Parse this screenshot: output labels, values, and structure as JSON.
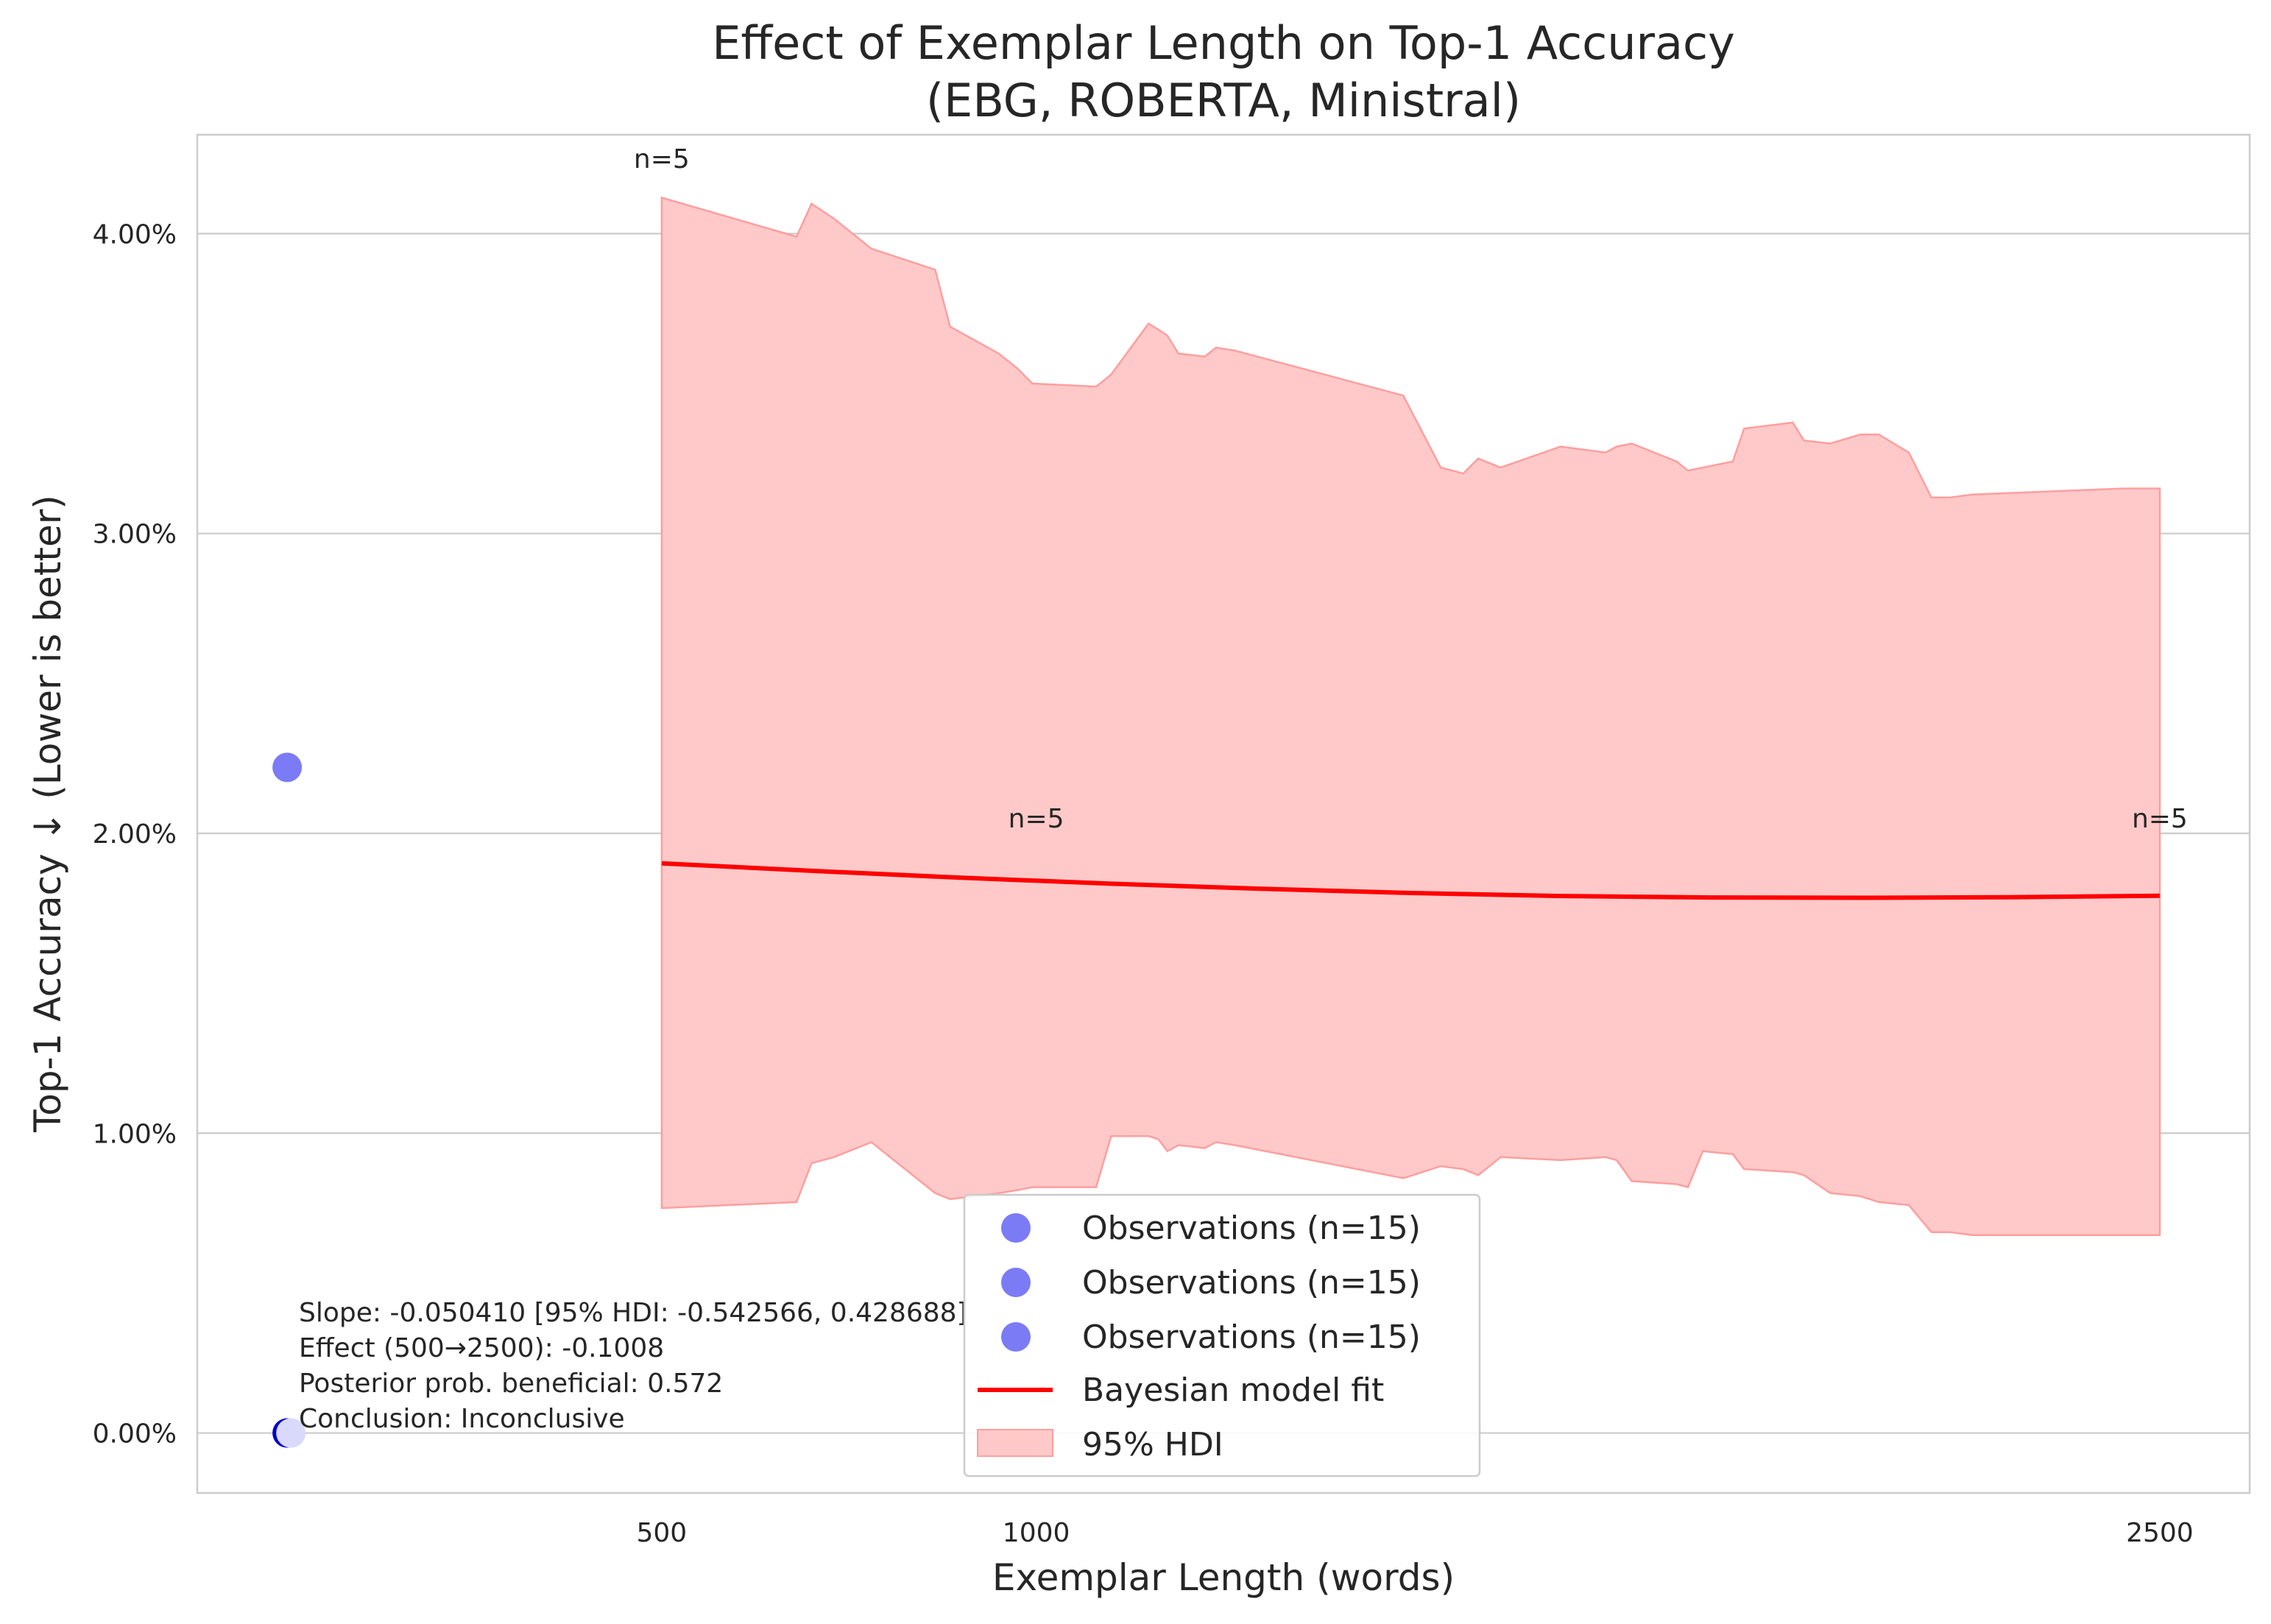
{
  "chart_data": {
    "type": "scatter",
    "title": [
      "Effect of Exemplar Length on Top-1 Accuracy",
      "(EBG, ROBERTA, Ministral)"
    ],
    "xlabel": "Exemplar Length (words)",
    "ylabel": "Top-1 Accuracy ↓ (Lower is better)",
    "xlim": [
      -120,
      2620
    ],
    "ylim": [
      -0.2,
      4.33
    ],
    "x_ticks": [
      {
        "value": 500,
        "label": "500"
      },
      {
        "value": 1000,
        "label": "1000"
      },
      {
        "value": 2500,
        "label": "2500"
      }
    ],
    "y_ticks": [
      {
        "value": 0,
        "label": "0.00%"
      },
      {
        "value": 1,
        "label": "1.00%"
      },
      {
        "value": 2,
        "label": "2.00%"
      },
      {
        "value": 3,
        "label": "3.00%"
      },
      {
        "value": 4,
        "label": "4.00%"
      }
    ],
    "grid": "horizontal",
    "colors": {
      "observation": "#7B7BF5",
      "observation_dark": "#0000CC",
      "observation_light": "#D9D9FB",
      "fit": "#FF0000",
      "hdi_fill": "#FFC9C9",
      "hdi_edge": "#FF9E9E",
      "grid": "#CCCCCC",
      "frame": "#CCCCCC"
    },
    "observations": [
      {
        "x": 0,
        "y": 2.22,
        "shade": "observation"
      },
      {
        "x": 0,
        "y": 0.0,
        "shade": "observation_dark"
      },
      {
        "x": 5,
        "y": 0.0,
        "shade": "observation_light"
      }
    ],
    "fit": {
      "name": "Bayesian model fit",
      "x": [
        500,
        700,
        900,
        1100,
        1300,
        1500,
        1700,
        1900,
        2100,
        2300,
        2500
      ],
      "y": [
        1.9,
        1.875,
        1.852,
        1.832,
        1.815,
        1.801,
        1.791,
        1.786,
        1.785,
        1.787,
        1.792
      ]
    },
    "hdi": {
      "name": "95% HDI",
      "x": [
        500,
        680,
        700,
        730,
        780,
        865,
        885,
        950,
        975,
        995,
        1080,
        1100,
        1150,
        1163,
        1175,
        1190,
        1225,
        1240,
        1265,
        1490,
        1540,
        1570,
        1590,
        1620,
        1700,
        1760,
        1775,
        1795,
        1855,
        1870,
        1890,
        1930,
        1945,
        2010,
        2025,
        2060,
        2100,
        2125,
        2165,
        2195,
        2220,
        2250,
        2250,
        2450,
        2460,
        2480,
        2500
      ],
      "upper": [
        4.12,
        3.99,
        4.1,
        4.05,
        3.95,
        3.88,
        3.69,
        3.6,
        3.55,
        3.5,
        3.49,
        3.53,
        3.7,
        3.68,
        3.66,
        3.6,
        3.59,
        3.62,
        3.61,
        3.46,
        3.22,
        3.2,
        3.25,
        3.22,
        3.29,
        3.27,
        3.29,
        3.3,
        3.24,
        3.21,
        3.22,
        3.24,
        3.35,
        3.37,
        3.31,
        3.3,
        3.33,
        3.33,
        3.27,
        3.12,
        3.12,
        3.13,
        3.13,
        3.15,
        3.15,
        3.15,
        3.15
      ],
      "lower": [
        0.75,
        0.77,
        0.9,
        0.92,
        0.97,
        0.8,
        0.78,
        0.8,
        0.81,
        0.82,
        0.82,
        0.99,
        0.99,
        0.98,
        0.94,
        0.96,
        0.95,
        0.97,
        0.96,
        0.85,
        0.89,
        0.88,
        0.86,
        0.92,
        0.91,
        0.92,
        0.91,
        0.84,
        0.83,
        0.82,
        0.94,
        0.93,
        0.88,
        0.87,
        0.86,
        0.8,
        0.79,
        0.77,
        0.76,
        0.67,
        0.67,
        0.66,
        0.66,
        0.66,
        0.66,
        0.66,
        0.66
      ]
    },
    "annotations": [
      {
        "x": 500,
        "y": 4.22,
        "text": "n=5"
      },
      {
        "x": 1000,
        "y": 2.02,
        "text": "n=5"
      },
      {
        "x": 2500,
        "y": 2.02,
        "text": "n=5"
      }
    ],
    "stats_text": [
      "Slope: -0.050410 [95% HDI: -0.542566, 0.428688]",
      "Effect (500→2500): -0.1008",
      "Posterior prob. beneficial: 0.572",
      "Conclusion: Inconclusive"
    ],
    "legend": {
      "position": "lower-center",
      "entries": [
        {
          "label": "Observations (n=15)",
          "kind": "dot"
        },
        {
          "label": "Observations (n=15)",
          "kind": "dot"
        },
        {
          "label": "Observations (n=15)",
          "kind": "dot"
        },
        {
          "label": "Bayesian model fit",
          "kind": "line"
        },
        {
          "label": "95% HDI",
          "kind": "patch"
        }
      ]
    }
  }
}
